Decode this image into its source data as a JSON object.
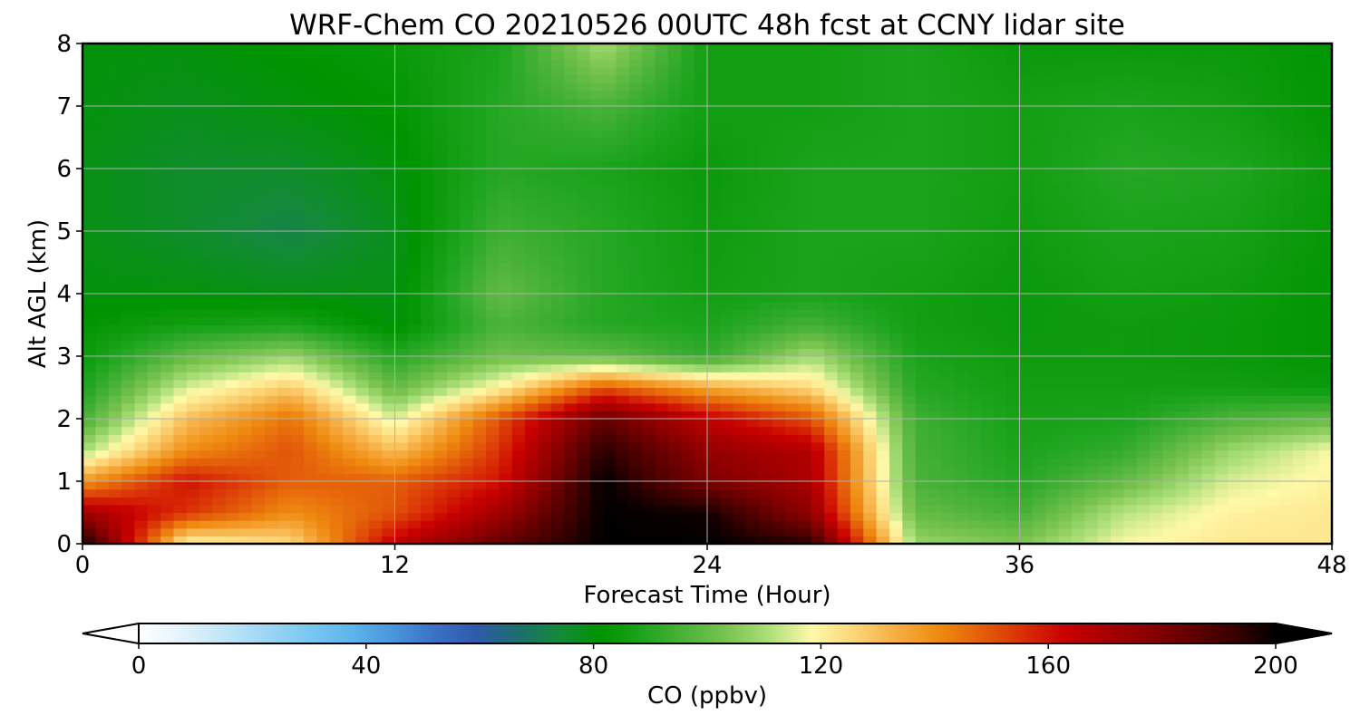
{
  "chart_data": {
    "type": "heatmap",
    "title": "WRF-Chem CO  20210526 00UTC 48h fcst at CCNY lidar site",
    "xlabel": "Forecast Time (Hour)",
    "ylabel": "Alt AGL (km)",
    "xlim": [
      0,
      48
    ],
    "ylim": [
      0,
      8
    ],
    "xticks": [
      0,
      12,
      24,
      36,
      48
    ],
    "yticks": [
      0,
      1,
      2,
      3,
      4,
      5,
      6,
      7,
      8
    ],
    "grid": true,
    "x": [
      0,
      4,
      8,
      12,
      16,
      20,
      24,
      28,
      32,
      36,
      40,
      44,
      48
    ],
    "y": [
      0,
      0.5,
      1,
      1.5,
      2,
      2.5,
      3,
      3.5,
      4,
      5,
      6,
      7,
      8
    ],
    "z": [
      [
        200,
        118,
        125,
        165,
        185,
        200,
        200,
        195,
        108,
        104,
        118,
        122,
        122
      ],
      [
        172,
        155,
        140,
        150,
        172,
        200,
        198,
        175,
        100,
        95,
        112,
        120,
        122
      ],
      [
        138,
        160,
        148,
        148,
        160,
        200,
        180,
        170,
        96,
        90,
        100,
        115,
        120
      ],
      [
        110,
        140,
        150,
        130,
        155,
        195,
        175,
        168,
        95,
        88,
        92,
        108,
        118
      ],
      [
        95,
        130,
        145,
        115,
        150,
        185,
        165,
        150,
        94,
        87,
        88,
        96,
        100
      ],
      [
        88,
        115,
        128,
        100,
        120,
        150,
        135,
        125,
        90,
        86,
        86,
        86,
        84
      ],
      [
        84,
        100,
        108,
        90,
        102,
        100,
        92,
        110,
        88,
        85,
        85,
        84,
        82
      ],
      [
        82,
        86,
        88,
        80,
        96,
        90,
        88,
        95,
        86,
        84,
        85,
        84,
        82
      ],
      [
        80,
        80,
        79,
        79,
        100,
        90,
        86,
        88,
        86,
        84,
        86,
        85,
        82
      ],
      [
        79,
        76,
        72,
        78,
        94,
        90,
        85,
        88,
        88,
        85,
        88,
        87,
        83
      ],
      [
        79,
        76,
        76,
        80,
        90,
        88,
        84,
        88,
        88,
        86,
        90,
        89,
        84
      ],
      [
        80,
        78,
        80,
        82,
        90,
        96,
        86,
        86,
        88,
        86,
        88,
        86,
        82
      ],
      [
        80,
        80,
        82,
        84,
        88,
        110,
        86,
        86,
        88,
        84,
        84,
        84,
        82
      ]
    ],
    "colorbar": {
      "label": "CO  (ppbv)",
      "min": 0,
      "max": 200,
      "ticks": [
        0,
        40,
        80,
        120,
        160,
        200
      ],
      "extend": "both",
      "colors": [
        "#ffffff",
        "#e4f3fb",
        "#c2e6f7",
        "#9fd6f4",
        "#7bc8f2",
        "#5fb6ec",
        "#4a97dc",
        "#3b72c8",
        "#2f5aaa",
        "#1c6e6e",
        "#148a3a",
        "#009400",
        "#1fa51f",
        "#4db33a",
        "#7bc450",
        "#aee07a",
        "#fff9a8",
        "#fcd577",
        "#f6ad42",
        "#ef8a10",
        "#e45f0a",
        "#d92e06",
        "#c90000",
        "#a80000",
        "#880000",
        "#620000",
        "#3a0000",
        "#000000"
      ]
    }
  }
}
